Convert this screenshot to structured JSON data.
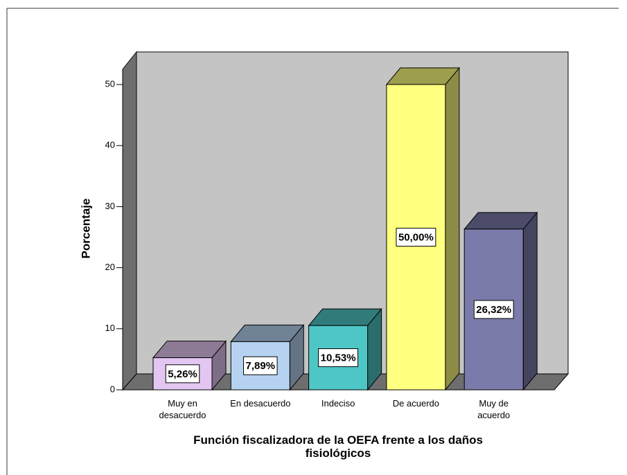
{
  "chart_data": {
    "type": "bar3d",
    "categories": [
      "Muy en\ndesacuerdo",
      "En desacuerdo",
      "Indeciso",
      "De acuerdo",
      "Muy de\nacuerdo"
    ],
    "values": [
      5.26,
      7.89,
      10.53,
      50.0,
      26.32
    ],
    "value_labels": [
      "5,26%",
      "7,89%",
      "10,53%",
      "50,00%",
      "26,32%"
    ],
    "colors": [
      "#e3c6f2",
      "#b5d2f0",
      "#4fc6c6",
      "#ffff80",
      "#7b7bab"
    ],
    "ylabel": "Porcentaje",
    "xlabel": "Función fiscalizadora de la OEFA frente a los daños\nfisiológicos",
    "ylim": [
      0,
      52.5
    ],
    "yticks": [
      0,
      10,
      20,
      30,
      40,
      50
    ]
  }
}
